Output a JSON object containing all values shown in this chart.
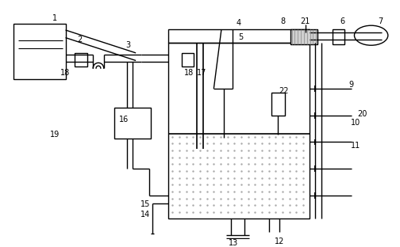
{
  "bg_color": "#ffffff",
  "line_color": "#000000",
  "lw": 1.0,
  "fig_width": 5.04,
  "fig_height": 3.12,
  "dpi": 100
}
